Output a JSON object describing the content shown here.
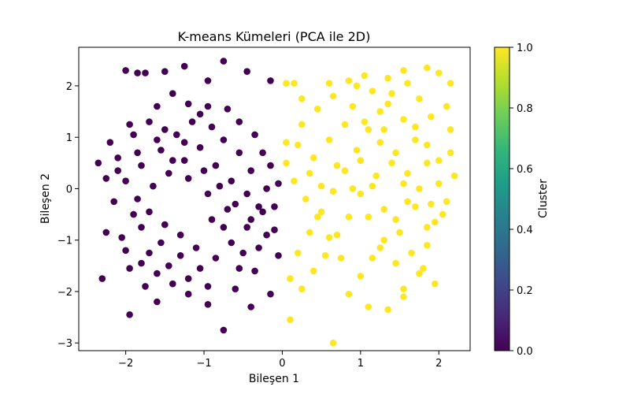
{
  "chart_data": {
    "type": "scatter",
    "title": "K-means Kümeleri (PCA ile 2D)",
    "xlabel": "Bileşen 1",
    "ylabel": "Bileşen 2",
    "xlim": [
      -2.6,
      2.4
    ],
    "ylim": [
      -3.15,
      2.75
    ],
    "xticks": [
      -2,
      -1,
      0,
      1,
      2
    ],
    "xtick_labels": [
      "−2",
      "−1",
      "0",
      "1",
      "2"
    ],
    "yticks": [
      -3,
      -2,
      -1,
      0,
      1,
      2
    ],
    "ytick_labels": [
      "−3",
      "−2",
      "−1",
      "0",
      "1",
      "2"
    ],
    "grid": false,
    "colorbar": {
      "label": "Cluster",
      "range": [
        0.0,
        1.0
      ],
      "ticks": [
        0.0,
        0.2,
        0.4,
        0.6,
        0.8,
        1.0
      ],
      "tick_labels": [
        "0.0",
        "0.2",
        "0.4",
        "0.6",
        "0.8",
        "1.0"
      ],
      "colormap": [
        "#440154",
        "#482878",
        "#3e4989",
        "#31688e",
        "#26828e",
        "#1f9e89",
        "#35b779",
        "#6ece58",
        "#b5de2b",
        "#fde725"
      ]
    },
    "series": [
      {
        "cluster": 0,
        "color": "#440154",
        "points": [
          [
            -2.0,
            2.3
          ],
          [
            -1.85,
            2.25
          ],
          [
            -1.75,
            2.25
          ],
          [
            -0.75,
            2.48
          ],
          [
            -1.25,
            2.38
          ],
          [
            -0.95,
            2.1
          ],
          [
            -0.15,
            2.1
          ],
          [
            -0.45,
            2.28
          ],
          [
            -1.5,
            2.28
          ],
          [
            -2.35,
            0.5
          ],
          [
            -2.25,
            0.2
          ],
          [
            -2.1,
            0.6
          ],
          [
            -1.95,
            1.25
          ],
          [
            -1.6,
            1.6
          ],
          [
            -1.4,
            1.85
          ],
          [
            -1.2,
            1.65
          ],
          [
            -1.05,
            1.45
          ],
          [
            -0.9,
            1.2
          ],
          [
            -0.7,
            1.55
          ],
          [
            -0.55,
            1.3
          ],
          [
            -0.35,
            1.05
          ],
          [
            -0.25,
            0.7
          ],
          [
            -0.15,
            0.45
          ],
          [
            -0.05,
            0.1
          ],
          [
            -0.3,
            -0.35
          ],
          [
            -0.45,
            -0.75
          ],
          [
            -0.65,
            -1.05
          ],
          [
            -0.85,
            -1.35
          ],
          [
            -1.05,
            -1.55
          ],
          [
            -1.3,
            -1.3
          ],
          [
            -1.55,
            -1.05
          ],
          [
            -1.8,
            -0.75
          ],
          [
            -2.05,
            -0.95
          ],
          [
            -2.25,
            -0.85
          ],
          [
            -2.3,
            -1.75
          ],
          [
            -1.95,
            -1.55
          ],
          [
            -1.75,
            -1.9
          ],
          [
            -1.6,
            -2.2
          ],
          [
            -1.95,
            -2.45
          ],
          [
            -0.75,
            -2.75
          ],
          [
            -0.4,
            -2.3
          ],
          [
            -0.15,
            -2.05
          ],
          [
            -0.6,
            -1.95
          ],
          [
            -0.95,
            -1.9
          ],
          [
            -1.2,
            -1.75
          ],
          [
            -1.45,
            -1.5
          ],
          [
            -1.7,
            -1.25
          ],
          [
            -1.85,
            -0.2
          ],
          [
            -1.65,
            0.05
          ],
          [
            -1.45,
            0.3
          ],
          [
            -1.25,
            0.55
          ],
          [
            -1.05,
            0.8
          ],
          [
            -0.85,
            0.45
          ],
          [
            -0.65,
            0.15
          ],
          [
            -0.45,
            -0.1
          ],
          [
            -0.25,
            -0.45
          ],
          [
            -0.1,
            -0.8
          ],
          [
            -0.05,
            -1.3
          ],
          [
            -0.35,
            -1.6
          ],
          [
            -2.15,
            -0.25
          ],
          [
            -2.0,
            0.15
          ],
          [
            -1.8,
            0.45
          ],
          [
            -1.55,
            0.75
          ],
          [
            -1.35,
            1.05
          ],
          [
            -1.15,
            1.3
          ],
          [
            -0.95,
            1.6
          ],
          [
            -0.75,
            0.95
          ],
          [
            -0.55,
            0.7
          ],
          [
            -0.4,
            0.35
          ],
          [
            -0.2,
            0.0
          ],
          [
            -0.1,
            -0.35
          ],
          [
            -2.2,
            0.9
          ],
          [
            -1.9,
            1.05
          ],
          [
            -1.7,
            1.3
          ],
          [
            -1.5,
            1.15
          ],
          [
            -1.25,
            0.9
          ],
          [
            -1.0,
            0.35
          ],
          [
            -0.8,
            0.05
          ],
          [
            -0.6,
            -0.3
          ],
          [
            -0.4,
            -0.6
          ],
          [
            -0.2,
            -0.9
          ],
          [
            -1.9,
            -0.5
          ],
          [
            -1.7,
            -0.45
          ],
          [
            -1.5,
            -0.7
          ],
          [
            -1.3,
            -0.9
          ],
          [
            -1.1,
            -1.15
          ],
          [
            -0.9,
            -0.6
          ],
          [
            -0.7,
            -0.4
          ],
          [
            -0.5,
            -1.25
          ],
          [
            -2.0,
            -1.2
          ],
          [
            -1.8,
            -1.45
          ],
          [
            -1.6,
            -1.65
          ],
          [
            -1.4,
            -1.85
          ],
          [
            -1.2,
            -2.05
          ],
          [
            -0.95,
            -2.25
          ],
          [
            -0.55,
            -1.55
          ],
          [
            -0.3,
            -1.15
          ],
          [
            -2.1,
            0.35
          ],
          [
            -1.85,
            0.7
          ],
          [
            -1.6,
            0.95
          ],
          [
            -1.4,
            0.55
          ],
          [
            -1.2,
            0.2
          ],
          [
            -0.95,
            -0.1
          ],
          [
            -0.75,
            -0.75
          ]
        ]
      },
      {
        "cluster": 1,
        "color": "#fde725",
        "points": [
          [
            0.05,
            2.05
          ],
          [
            0.15,
            2.05
          ],
          [
            0.25,
            1.75
          ],
          [
            0.6,
            2.05
          ],
          [
            0.85,
            2.1
          ],
          [
            1.05,
            2.2
          ],
          [
            1.35,
            2.15
          ],
          [
            1.55,
            2.3
          ],
          [
            1.85,
            2.35
          ],
          [
            2.0,
            2.25
          ],
          [
            2.15,
            2.05
          ],
          [
            2.1,
            1.6
          ],
          [
            2.15,
            1.15
          ],
          [
            2.15,
            0.7
          ],
          [
            2.2,
            0.25
          ],
          [
            2.1,
            -0.25
          ],
          [
            1.95,
            -0.65
          ],
          [
            1.85,
            -1.1
          ],
          [
            1.75,
            -1.65
          ],
          [
            1.55,
            -2.1
          ],
          [
            1.35,
            -2.35
          ],
          [
            1.1,
            -2.3
          ],
          [
            0.85,
            -2.05
          ],
          [
            0.65,
            -3.0
          ],
          [
            0.1,
            -2.55
          ],
          [
            0.1,
            -1.75
          ],
          [
            0.2,
            -1.25
          ],
          [
            0.35,
            -0.85
          ],
          [
            0.5,
            -0.45
          ],
          [
            0.65,
            -0.05
          ],
          [
            0.8,
            0.35
          ],
          [
            0.95,
            0.75
          ],
          [
            1.1,
            1.15
          ],
          [
            1.25,
            1.5
          ],
          [
            1.4,
            1.85
          ],
          [
            1.55,
            1.35
          ],
          [
            1.7,
            0.95
          ],
          [
            1.85,
            0.5
          ],
          [
            2.0,
            0.1
          ],
          [
            1.6,
            -0.25
          ],
          [
            1.45,
            -0.6
          ],
          [
            1.3,
            -1.0
          ],
          [
            1.15,
            -1.35
          ],
          [
            1.0,
            -1.7
          ],
          [
            0.75,
            -1.35
          ],
          [
            0.6,
            -0.95
          ],
          [
            0.45,
            -0.55
          ],
          [
            0.3,
            -0.2
          ],
          [
            0.15,
            0.15
          ],
          [
            0.05,
            0.5
          ],
          [
            0.05,
            0.9
          ],
          [
            0.25,
            1.25
          ],
          [
            0.45,
            1.55
          ],
          [
            0.65,
            1.8
          ],
          [
            0.9,
            1.6
          ],
          [
            1.05,
            1.3
          ],
          [
            1.25,
            0.9
          ],
          [
            1.4,
            0.5
          ],
          [
            1.55,
            0.1
          ],
          [
            1.7,
            -0.35
          ],
          [
            1.85,
            -0.75
          ],
          [
            1.2,
            0.25
          ],
          [
            1.0,
            -0.1
          ],
          [
            0.85,
            -0.55
          ],
          [
            0.7,
            -0.9
          ],
          [
            0.55,
            -1.3
          ],
          [
            0.4,
            -1.6
          ],
          [
            0.25,
            -1.95
          ],
          [
            0.4,
            0.6
          ],
          [
            0.6,
            0.95
          ],
          [
            0.8,
            1.25
          ],
          [
            1.0,
            0.55
          ],
          [
            1.15,
            0.05
          ],
          [
            1.3,
            -0.4
          ],
          [
            1.5,
            -0.85
          ],
          [
            1.65,
            -1.25
          ],
          [
            1.8,
            -1.55
          ],
          [
            1.95,
            -1.85
          ],
          [
            1.9,
            1.4
          ],
          [
            1.75,
            1.75
          ],
          [
            1.6,
            2.05
          ],
          [
            1.3,
            1.15
          ],
          [
            1.45,
            0.7
          ],
          [
            1.6,
            0.3
          ],
          [
            1.75,
            0.0
          ],
          [
            1.9,
            -0.3
          ],
          [
            2.05,
            -0.5
          ],
          [
            0.2,
            0.85
          ],
          [
            0.35,
            0.3
          ],
          [
            0.5,
            0.05
          ],
          [
            0.7,
            0.45
          ],
          [
            0.9,
            0.0
          ],
          [
            1.1,
            -0.55
          ],
          [
            1.25,
            -1.15
          ],
          [
            1.45,
            -1.45
          ],
          [
            1.55,
            -1.95
          ],
          [
            1.7,
            1.2
          ],
          [
            1.85,
            0.85
          ],
          [
            2.0,
            0.55
          ],
          [
            1.35,
            1.65
          ],
          [
            1.15,
            1.9
          ],
          [
            0.95,
            2.0
          ]
        ]
      }
    ]
  }
}
